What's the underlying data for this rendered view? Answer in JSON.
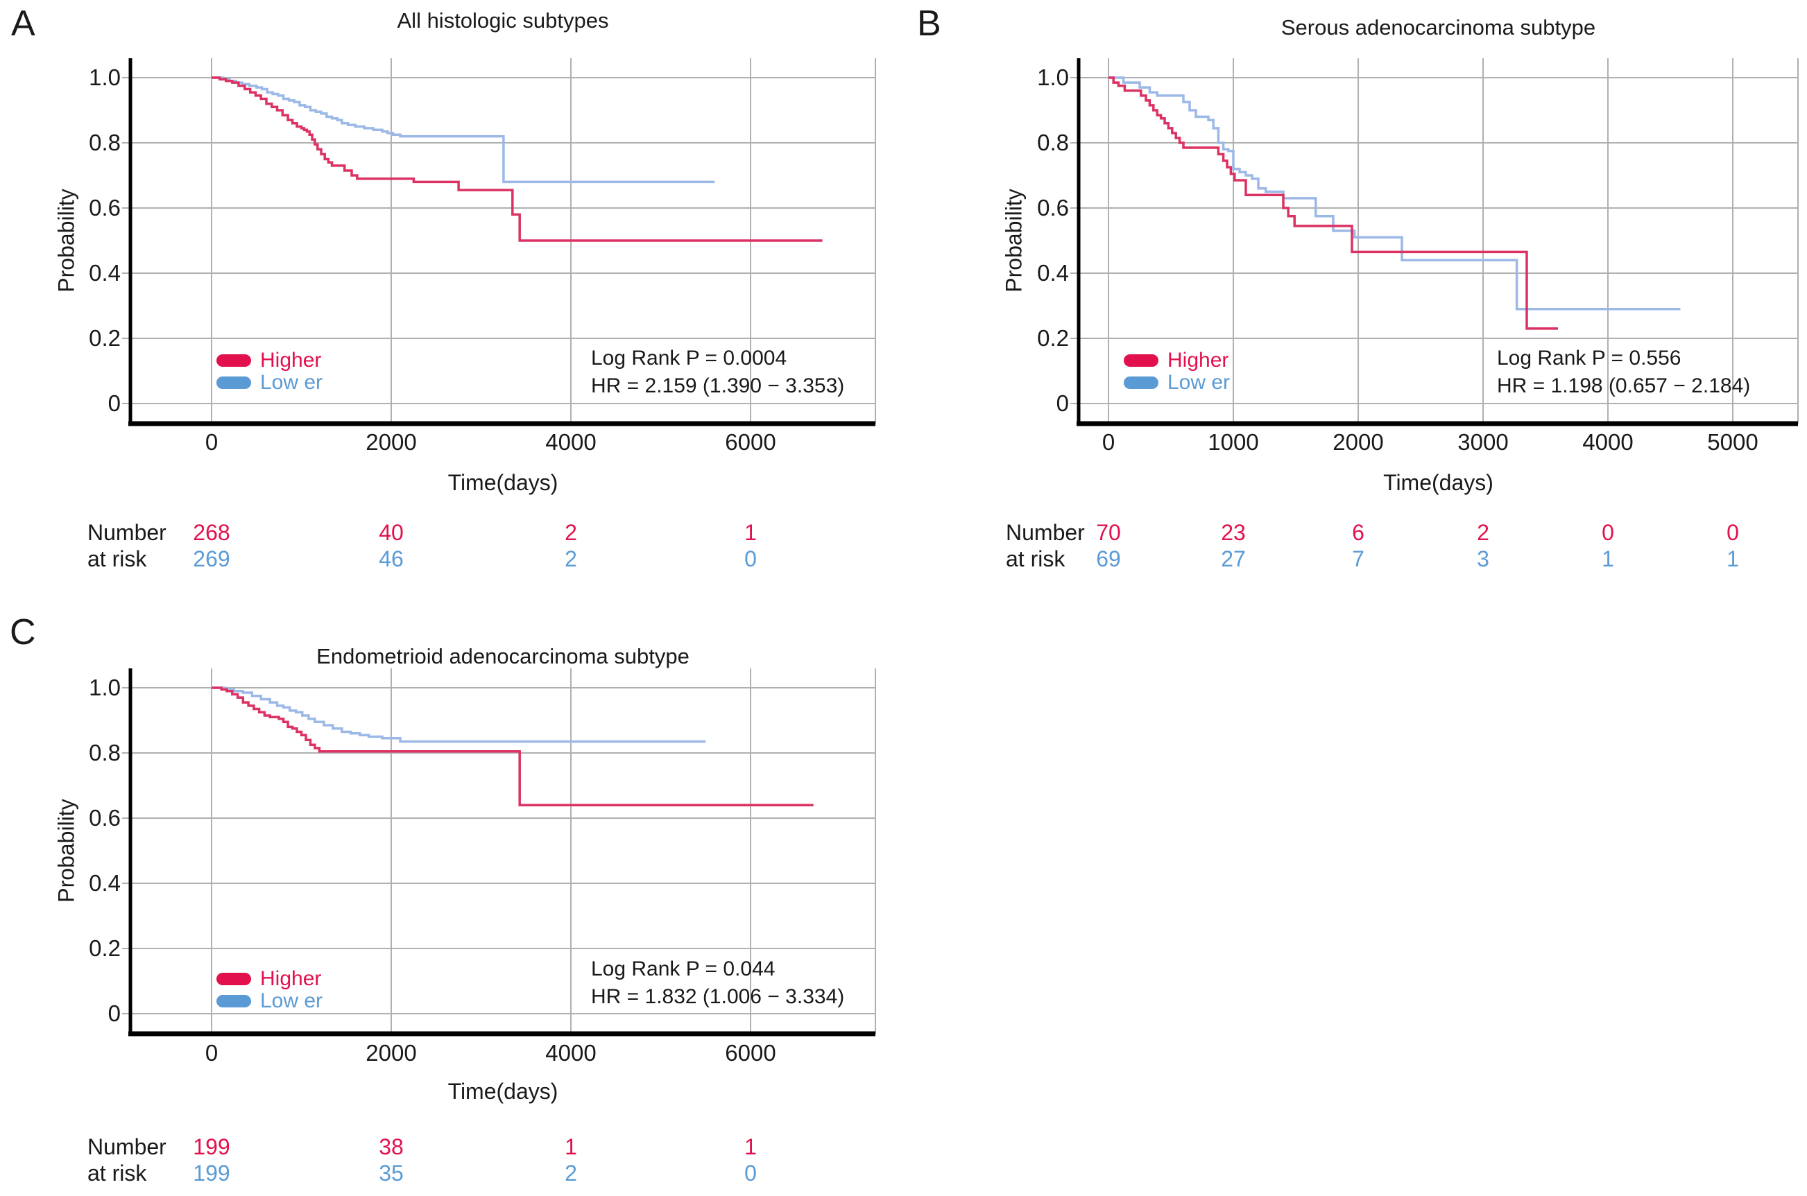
{
  "figure_type": "Kaplan-Meier survival curves, three panels",
  "chart_data": [
    {
      "type": "km_step_line",
      "panel_label": "A",
      "title": "All histologic subtypes",
      "xlabel": "Time(days)",
      "ylabel": "Probability",
      "xlim": [
        0,
        7400
      ],
      "ylim": [
        0,
        1.06
      ],
      "grid": true,
      "x_ticks": [
        0,
        2000,
        4000,
        6000
      ],
      "y_tick_labels": [
        "1.0",
        "0.8",
        "0.6",
        "0.4",
        "0.2",
        "0"
      ],
      "y_tick_values": [
        1.0,
        0.8,
        0.6,
        0.4,
        0.2,
        0
      ],
      "legend_position": "lower-left-inside",
      "legend": [
        {
          "label": "Higher",
          "color": "#e2114d"
        },
        {
          "label": "Low er",
          "color": "#5b9bd5"
        }
      ],
      "annotation_lines": [
        "Log Rank P = 0.0004",
        "HR = 2.159 (1.390 − 3.353)"
      ],
      "series": [
        {
          "name": "Higher",
          "color": "#dc3263",
          "points": [
            [
              0,
              1.0
            ],
            [
              90,
              0.995
            ],
            [
              160,
              0.99
            ],
            [
              230,
              0.985
            ],
            [
              300,
              0.975
            ],
            [
              370,
              0.965
            ],
            [
              430,
              0.955
            ],
            [
              490,
              0.945
            ],
            [
              550,
              0.935
            ],
            [
              610,
              0.92
            ],
            [
              670,
              0.91
            ],
            [
              730,
              0.9
            ],
            [
              790,
              0.885
            ],
            [
              850,
              0.87
            ],
            [
              900,
              0.86
            ],
            [
              950,
              0.85
            ],
            [
              1000,
              0.845
            ],
            [
              1030,
              0.84
            ],
            [
              1060,
              0.835
            ],
            [
              1090,
              0.825
            ],
            [
              1120,
              0.81
            ],
            [
              1150,
              0.795
            ],
            [
              1180,
              0.78
            ],
            [
              1220,
              0.765
            ],
            [
              1260,
              0.75
            ],
            [
              1300,
              0.74
            ],
            [
              1340,
              0.73
            ],
            [
              1480,
              0.715
            ],
            [
              1560,
              0.7
            ],
            [
              1620,
              0.69
            ],
            [
              2250,
              0.68
            ],
            [
              2750,
              0.655
            ],
            [
              3350,
              0.58
            ],
            [
              3430,
              0.5
            ],
            [
              6800,
              0.5
            ]
          ]
        },
        {
          "name": "Low er",
          "color": "#9cb8e6",
          "points": [
            [
              0,
              1.0
            ],
            [
              130,
              0.995
            ],
            [
              200,
              0.99
            ],
            [
              270,
              0.985
            ],
            [
              340,
              0.98
            ],
            [
              420,
              0.975
            ],
            [
              500,
              0.97
            ],
            [
              560,
              0.965
            ],
            [
              620,
              0.955
            ],
            [
              680,
              0.95
            ],
            [
              740,
              0.945
            ],
            [
              800,
              0.935
            ],
            [
              860,
              0.93
            ],
            [
              920,
              0.925
            ],
            [
              980,
              0.915
            ],
            [
              1040,
              0.91
            ],
            [
              1100,
              0.9
            ],
            [
              1160,
              0.895
            ],
            [
              1220,
              0.89
            ],
            [
              1280,
              0.88
            ],
            [
              1340,
              0.875
            ],
            [
              1400,
              0.87
            ],
            [
              1450,
              0.86
            ],
            [
              1520,
              0.855
            ],
            [
              1600,
              0.85
            ],
            [
              1700,
              0.845
            ],
            [
              1800,
              0.84
            ],
            [
              1900,
              0.835
            ],
            [
              1960,
              0.83
            ],
            [
              2020,
              0.825
            ],
            [
              2100,
              0.82
            ],
            [
              3250,
              0.68
            ],
            [
              5600,
              0.68
            ]
          ]
        }
      ],
      "risk_table": {
        "label_line1": "Number",
        "label_line2": "at risk",
        "times": [
          0,
          2000,
          4000,
          6000
        ],
        "rows": [
          {
            "name": "Higher",
            "color": "#e2114d",
            "values": [
              "268",
              "40",
              "2",
              "1"
            ]
          },
          {
            "name": "Low er",
            "color": "#5b9bd5",
            "values": [
              "269",
              "46",
              "2",
              "0"
            ]
          }
        ]
      }
    },
    {
      "type": "km_step_line",
      "panel_label": "B",
      "title": "Serous adenocarcinoma subtype",
      "xlabel": "Time(days)",
      "ylabel": "Probability",
      "xlim": [
        0,
        5500
      ],
      "ylim": [
        0,
        1.06
      ],
      "grid": true,
      "x_ticks": [
        0,
        1000,
        2000,
        3000,
        4000,
        5000
      ],
      "y_tick_labels": [
        "1.0",
        "0.8",
        "0.6",
        "0.4",
        "0.2",
        "0"
      ],
      "y_tick_values": [
        1.0,
        0.8,
        0.6,
        0.4,
        0.2,
        0
      ],
      "legend_position": "lower-left-inside",
      "legend": [
        {
          "label": "Higher",
          "color": "#e2114d"
        },
        {
          "label": "Low er",
          "color": "#5b9bd5"
        }
      ],
      "annotation_lines": [
        "Log Rank P = 0.556",
        "HR = 1.198 (0.657 − 2.184)"
      ],
      "series": [
        {
          "name": "Higher",
          "color": "#dc3263",
          "points": [
            [
              0,
              1.0
            ],
            [
              40,
              0.985
            ],
            [
              80,
              0.975
            ],
            [
              130,
              0.96
            ],
            [
              260,
              0.945
            ],
            [
              300,
              0.93
            ],
            [
              330,
              0.915
            ],
            [
              360,
              0.9
            ],
            [
              390,
              0.885
            ],
            [
              420,
              0.875
            ],
            [
              450,
              0.86
            ],
            [
              480,
              0.845
            ],
            [
              510,
              0.83
            ],
            [
              540,
              0.815
            ],
            [
              570,
              0.8
            ],
            [
              600,
              0.785
            ],
            [
              880,
              0.765
            ],
            [
              920,
              0.745
            ],
            [
              950,
              0.725
            ],
            [
              980,
              0.705
            ],
            [
              1010,
              0.685
            ],
            [
              1100,
              0.64
            ],
            [
              1400,
              0.6
            ],
            [
              1440,
              0.575
            ],
            [
              1490,
              0.545
            ],
            [
              1950,
              0.465
            ],
            [
              3350,
              0.23
            ],
            [
              3600,
              0.23
            ]
          ]
        },
        {
          "name": "Low er",
          "color": "#9cb8e6",
          "points": [
            [
              0,
              1.0
            ],
            [
              120,
              0.985
            ],
            [
              250,
              0.97
            ],
            [
              330,
              0.955
            ],
            [
              390,
              0.945
            ],
            [
              600,
              0.925
            ],
            [
              650,
              0.9
            ],
            [
              700,
              0.88
            ],
            [
              800,
              0.87
            ],
            [
              840,
              0.845
            ],
            [
              880,
              0.8
            ],
            [
              920,
              0.78
            ],
            [
              960,
              0.775
            ],
            [
              1000,
              0.72
            ],
            [
              1050,
              0.71
            ],
            [
              1100,
              0.7
            ],
            [
              1150,
              0.69
            ],
            [
              1200,
              0.66
            ],
            [
              1260,
              0.65
            ],
            [
              1400,
              0.63
            ],
            [
              1660,
              0.575
            ],
            [
              1800,
              0.53
            ],
            [
              1970,
              0.51
            ],
            [
              2350,
              0.44
            ],
            [
              3270,
              0.29
            ],
            [
              4580,
              0.29
            ]
          ]
        }
      ],
      "risk_table": {
        "label_line1": "Number",
        "label_line2": "at risk",
        "times": [
          0,
          1000,
          2000,
          3000,
          4000,
          5000
        ],
        "rows": [
          {
            "name": "Higher",
            "color": "#e2114d",
            "values": [
              "70",
              "23",
              "6",
              "2",
              "0",
              "0"
            ]
          },
          {
            "name": "Low er",
            "color": "#5b9bd5",
            "values": [
              "69",
              "27",
              "7",
              "3",
              "1",
              "1"
            ]
          }
        ]
      }
    },
    {
      "type": "km_step_line",
      "panel_label": "C",
      "title": "Endometrioid adenocarcinoma subtype",
      "xlabel": "Time(days)",
      "ylabel": "Probability",
      "xlim": [
        0,
        7400
      ],
      "ylim": [
        0,
        1.06
      ],
      "grid": true,
      "x_ticks": [
        0,
        2000,
        4000,
        6000
      ],
      "y_tick_labels": [
        "1.0",
        "0.8",
        "0.6",
        "0.4",
        "0.2",
        "0"
      ],
      "y_tick_values": [
        1.0,
        0.8,
        0.6,
        0.4,
        0.2,
        0
      ],
      "legend_position": "lower-left-inside",
      "legend": [
        {
          "label": "Higher",
          "color": "#e2114d"
        },
        {
          "label": "Low er",
          "color": "#5b9bd5"
        }
      ],
      "annotation_lines": [
        "Log Rank P = 0.044",
        "HR = 1.832 (1.006 − 3.334)"
      ],
      "series": [
        {
          "name": "Higher",
          "color": "#dc3263",
          "points": [
            [
              0,
              1.0
            ],
            [
              110,
              0.995
            ],
            [
              170,
              0.99
            ],
            [
              230,
              0.98
            ],
            [
              290,
              0.97
            ],
            [
              350,
              0.955
            ],
            [
              410,
              0.945
            ],
            [
              470,
              0.935
            ],
            [
              530,
              0.925
            ],
            [
              590,
              0.915
            ],
            [
              650,
              0.91
            ],
            [
              750,
              0.905
            ],
            [
              800,
              0.895
            ],
            [
              850,
              0.88
            ],
            [
              900,
              0.875
            ],
            [
              950,
              0.865
            ],
            [
              1000,
              0.855
            ],
            [
              1050,
              0.84
            ],
            [
              1100,
              0.825
            ],
            [
              1150,
              0.815
            ],
            [
              1200,
              0.805
            ],
            [
              3430,
              0.64
            ],
            [
              6700,
              0.64
            ]
          ]
        },
        {
          "name": "Low er",
          "color": "#9cb8e6",
          "points": [
            [
              0,
              1.0
            ],
            [
              150,
              0.995
            ],
            [
              250,
              0.99
            ],
            [
              350,
              0.985
            ],
            [
              450,
              0.975
            ],
            [
              550,
              0.965
            ],
            [
              650,
              0.955
            ],
            [
              730,
              0.945
            ],
            [
              800,
              0.94
            ],
            [
              870,
              0.93
            ],
            [
              940,
              0.925
            ],
            [
              1010,
              0.915
            ],
            [
              1080,
              0.905
            ],
            [
              1150,
              0.895
            ],
            [
              1250,
              0.885
            ],
            [
              1350,
              0.875
            ],
            [
              1450,
              0.865
            ],
            [
              1550,
              0.86
            ],
            [
              1650,
              0.855
            ],
            [
              1750,
              0.85
            ],
            [
              1900,
              0.845
            ],
            [
              2100,
              0.835
            ],
            [
              5500,
              0.835
            ]
          ]
        }
      ],
      "risk_table": {
        "label_line1": "Number",
        "label_line2": "at risk",
        "times": [
          0,
          2000,
          4000,
          6000
        ],
        "rows": [
          {
            "name": "Higher",
            "color": "#e2114d",
            "values": [
              "199",
              "38",
              "1",
              "1"
            ]
          },
          {
            "name": "Low er",
            "color": "#5b9bd5",
            "values": [
              "199",
              "35",
              "2",
              "0"
            ]
          }
        ]
      }
    }
  ],
  "colors": {
    "higher": "#e2114d",
    "lower": "#5b9bd5",
    "higher_line": "#dc3263",
    "lower_line": "#9cb8e6",
    "gridline": "#b0b0b0",
    "axis": "#000000"
  }
}
